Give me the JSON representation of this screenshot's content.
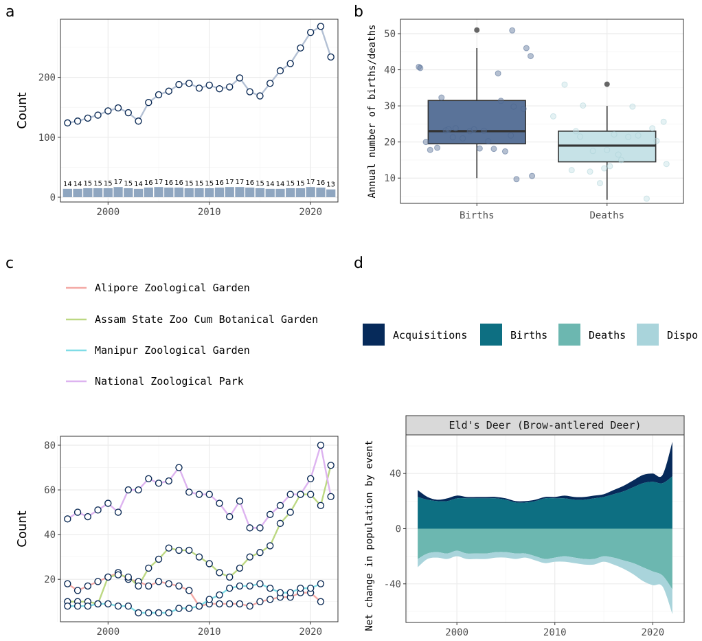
{
  "panels": {
    "a": "a",
    "b": "b",
    "c": "c",
    "d": "d"
  },
  "colors": {
    "line_a": "#b3c0d4",
    "point_stroke": "#0b2a55",
    "bar_fill": "#8fa6c0",
    "box_births": "#5a7399",
    "box_deaths": "#c6e2e7",
    "acquisitions": "#062a5a",
    "births": "#0d6f82",
    "deaths": "#6cb7b0",
    "disposals": "#a9d4db",
    "alipore": "#f4a9a5",
    "assam": "#bcd882",
    "manipur": "#7fdce6",
    "national": "#ddb3f0"
  },
  "chart_data": [
    {
      "id": "a",
      "type": "line",
      "ylabel": "Count",
      "xlim": [
        1995.3,
        2022.7
      ],
      "ylim": [
        -8,
        297
      ],
      "xticks": [
        2000,
        2010,
        2020
      ],
      "yticks": [
        0,
        100,
        200
      ],
      "x": [
        1996,
        1997,
        1998,
        1999,
        2000,
        2001,
        2002,
        2003,
        2004,
        2005,
        2006,
        2007,
        2008,
        2009,
        2010,
        2011,
        2012,
        2013,
        2014,
        2015,
        2016,
        2017,
        2018,
        2019,
        2020,
        2021,
        2022
      ],
      "series": [
        {
          "values": [
            124,
            127,
            132,
            137,
            144,
            149,
            141,
            127,
            158,
            171,
            177,
            188,
            190,
            182,
            187,
            181,
            184,
            199,
            176,
            169,
            190,
            211,
            223,
            249,
            275,
            285,
            234
          ]
        }
      ],
      "bars": {
        "values": [
          14,
          14,
          15,
          15,
          15,
          17,
          15,
          14,
          16,
          17,
          16,
          16,
          15,
          15,
          15,
          16,
          17,
          17,
          16,
          15,
          14,
          14,
          15,
          15,
          17,
          16,
          13
        ],
        "labels": [
          "14",
          "14",
          "15",
          "15",
          "15",
          "17",
          "15",
          "14",
          "16",
          "17",
          "16",
          "16",
          "15",
          "15",
          "15",
          "16",
          "17",
          "17",
          "16",
          "15",
          "14",
          "14",
          "15",
          "15",
          "17",
          "16",
          "13"
        ]
      }
    },
    {
      "id": "b",
      "type": "box",
      "ylabel": "Annual number of births/deaths",
      "categories": [
        "Births",
        "Deaths"
      ],
      "ylim": [
        3,
        54
      ],
      "yticks": [
        10,
        20,
        30,
        40,
        50
      ],
      "boxes": [
        {
          "q1": 19.5,
          "median": 23,
          "q3": 31.5,
          "whisker_low": 10,
          "whisker_high": 46,
          "outliers": [
            51
          ]
        },
        {
          "q1": 14.5,
          "median": 19,
          "q3": 23,
          "whisker_low": 4,
          "whisker_high": 30,
          "outliers": [
            36
          ]
        }
      ],
      "jitter": [
        {
          "x": [
            -0.41,
            -0.4,
            -0.36,
            -0.33,
            -0.28,
            -0.25,
            -0.22,
            -0.2,
            -0.17,
            -0.15,
            -0.1,
            -0.05,
            -0.02,
            0.02,
            0.05,
            0.08,
            0.12,
            0.15,
            0.17,
            0.2,
            0.24,
            0.25,
            0.26,
            0.28,
            0.33,
            0.35,
            0.38,
            0.39
          ],
          "y": [
            40.8,
            40.5,
            20,
            17.8,
            18.4,
            32.3,
            23.2,
            23.5,
            21.3,
            23.8,
            21.0,
            23.0,
            23.5,
            18.2,
            23.1,
            20.2,
            18.1,
            39.0,
            31.4,
            17.4,
            21.8,
            50.9,
            29.8,
            9.7,
            29.2,
            46.0,
            43.8,
            10.6
          ]
        },
        {
          "x": [
            -0.38,
            -0.3,
            -0.25,
            -0.22,
            -0.19,
            -0.17,
            -0.12,
            -0.1,
            -0.05,
            -0.02,
            0.0,
            0.02,
            0.05,
            0.08,
            0.1,
            0.15,
            0.18,
            0.22,
            0.28,
            0.32,
            0.35,
            0.4,
            0.42
          ],
          "y": [
            27.1,
            35.9,
            12.2,
            23.0,
            21.5,
            30.1,
            11.8,
            17.5,
            8.6,
            12.7,
            17.8,
            13.3,
            22.1,
            16.5,
            15.0,
            21.4,
            29.8,
            21.8,
            4.3,
            23.8,
            20.3,
            25.6,
            13.9
          ]
        }
      ]
    },
    {
      "id": "c",
      "type": "line",
      "ylabel": "Count",
      "xlim": [
        1995.3,
        2022.7
      ],
      "ylim": [
        1,
        84
      ],
      "xticks": [
        2000,
        2010,
        2020
      ],
      "yticks": [
        20,
        40,
        60,
        80
      ],
      "x": [
        1996,
        1997,
        1998,
        1999,
        2000,
        2001,
        2002,
        2003,
        2004,
        2005,
        2006,
        2007,
        2008,
        2009,
        2010,
        2011,
        2012,
        2013,
        2014,
        2015,
        2016,
        2017,
        2018,
        2019,
        2020,
        2021,
        2022
      ],
      "series": [
        {
          "name": "Alipore Zoological Garden",
          "values": [
            18,
            15,
            17,
            19,
            21,
            23,
            20,
            19,
            17,
            19,
            18,
            17,
            15,
            8,
            9,
            9,
            9,
            9,
            8,
            10,
            11,
            12,
            12,
            14,
            14,
            10,
            null
          ]
        },
        {
          "name": "Assam State Zoo Cum Botanical Garden",
          "values": [
            10,
            10,
            10,
            9,
            21,
            22,
            21,
            17,
            25,
            29,
            34,
            33,
            33,
            30,
            27,
            23,
            21,
            25,
            30,
            32,
            35,
            45,
            50,
            58,
            58,
            53,
            71
          ]
        },
        {
          "name": "Manipur Zoological Garden",
          "values": [
            8,
            8,
            8,
            9,
            9,
            8,
            8,
            5,
            5,
            5,
            5,
            7,
            7,
            8,
            11,
            13,
            16,
            17,
            17,
            18,
            16,
            14,
            14,
            16,
            16,
            18,
            null
          ]
        },
        {
          "name": "National Zoological Park",
          "values": [
            47,
            50,
            48,
            51,
            54,
            50,
            60,
            60,
            65,
            63,
            64,
            70,
            59,
            58,
            58,
            54,
            48,
            55,
            43,
            43,
            49,
            53,
            58,
            58,
            65,
            80,
            57
          ]
        }
      ]
    },
    {
      "id": "d",
      "type": "area",
      "ylabel": "Net change in population by event",
      "strip": "Eld's Deer (Brow-antlered Deer)",
      "xlim": [
        1994.8,
        2023.2
      ],
      "ylim": [
        -68,
        68
      ],
      "xticks": [
        2000,
        2010,
        2020
      ],
      "yticks": [
        -40,
        0,
        40
      ],
      "legend": [
        "Acquisitions",
        "Births",
        "Deaths",
        "Dispo"
      ],
      "x": [
        1996,
        1997,
        1998,
        1999,
        2000,
        2001,
        2002,
        2003,
        2004,
        2005,
        2006,
        2007,
        2008,
        2009,
        2010,
        2011,
        2012,
        2013,
        2014,
        2015,
        2016,
        2017,
        2018,
        2019,
        2020,
        2021,
        2022
      ],
      "series": [
        {
          "name": "Acquisitions",
          "values": [
            5,
            2,
            1,
            2,
            2,
            1,
            1,
            1,
            1,
            1,
            1,
            1,
            1,
            1,
            1,
            2,
            2,
            2,
            2,
            2,
            3,
            4,
            5,
            6,
            6,
            6,
            25
          ]
        },
        {
          "name": "Births",
          "values": [
            23,
            21,
            20,
            20,
            22,
            22,
            22,
            22,
            22,
            21,
            19,
            19,
            20,
            22,
            22,
            22,
            21,
            21,
            22,
            23,
            25,
            27,
            30,
            33,
            34,
            33,
            38
          ]
        },
        {
          "name": "Deaths",
          "values": [
            -22,
            -18,
            -17,
            -18,
            -16,
            -18,
            -18,
            -18,
            -17,
            -17,
            -18,
            -18,
            -20,
            -22,
            -21,
            -20,
            -21,
            -22,
            -22,
            -20,
            -21,
            -23,
            -25,
            -28,
            -31,
            -34,
            -44
          ]
        },
        {
          "name": "Disposals",
          "values": [
            -6,
            -4,
            -4,
            -4,
            -4,
            -4,
            -4,
            -4,
            -4,
            -4,
            -4,
            -3,
            -3,
            -3,
            -3,
            -4,
            -4,
            -4,
            -4,
            -4,
            -5,
            -6,
            -8,
            -10,
            -10,
            -8,
            -18
          ]
        }
      ]
    }
  ]
}
